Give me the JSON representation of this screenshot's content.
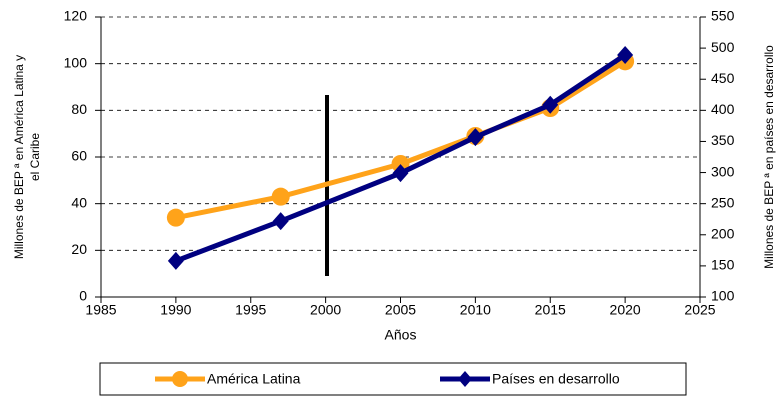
{
  "chart_data": {
    "type": "line",
    "xlabel": "Años",
    "ylabel": [
      "Millones de BEP ª en América Latina y",
      "el Caribe"
    ],
    "y2label": "Millones de BEP ª en países en desarrollo",
    "series": [
      {
        "name": "América Latina",
        "color": "#ffa31a",
        "marker": "circle",
        "x": [
          1990,
          1997,
          2005,
          2010,
          2015,
          2020
        ],
        "values": [
          34,
          43,
          57,
          69,
          81,
          101
        ]
      },
      {
        "name": "Países en desarrollo",
        "color": "#000080",
        "marker": "diamond",
        "axis": "y2",
        "x": [
          1990,
          1997,
          2005,
          2010,
          2015,
          2020
        ],
        "values": [
          158,
          222,
          299,
          357,
          409,
          489
        ]
      }
    ],
    "xlim": [
      1985,
      2025
    ],
    "xticks": [
      1985,
      1990,
      1995,
      2000,
      2005,
      2010,
      2015,
      2020,
      2025
    ],
    "ylim": [
      0,
      120
    ],
    "yticks": [
      0,
      20,
      40,
      60,
      80,
      100,
      120
    ],
    "y2lim": [
      100,
      550
    ],
    "y2ticks": [
      100,
      150,
      200,
      250,
      300,
      350,
      400,
      450,
      500,
      550
    ],
    "grid": true,
    "legend": "bottom"
  }
}
